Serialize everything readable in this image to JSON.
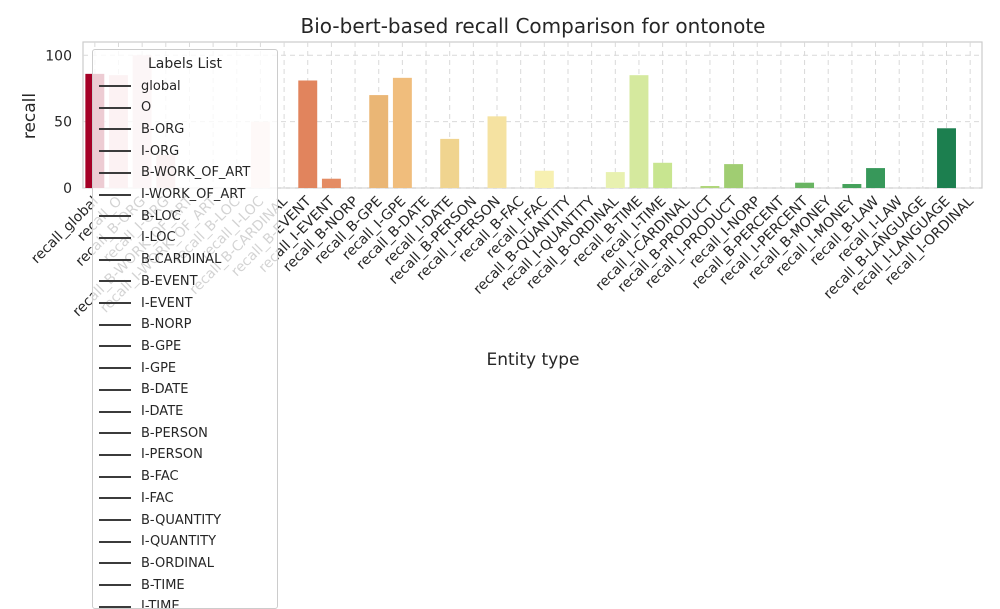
{
  "chart_data": {
    "type": "bar",
    "title": "Bio-bert-based recall Comparison for ontonote",
    "xlabel": "Entity type",
    "ylabel": "recall",
    "ylim": [
      0,
      110
    ],
    "yticks": [
      0,
      50,
      100
    ],
    "grid": true,
    "categories": [
      "recall_global",
      "recall_O",
      "recall_B-ORG",
      "recall_I-ORG",
      "recall_B-WORK_OF_ART",
      "recall_I-WORK_OF_ART",
      "recall_B-LOC",
      "recall_I-LOC",
      "recall_B-CARDINAL",
      "recall_B-EVENT",
      "recall_I-EVENT",
      "recall_B-NORP",
      "recall_B-GPE",
      "recall_I-GPE",
      "recall_B-DATE",
      "recall_I-DATE",
      "recall_B-PERSON",
      "recall_I-PERSON",
      "recall_B-FAC",
      "recall_I-FAC",
      "recall_B-QUANTITY",
      "recall_I-QUANTITY",
      "recall_B-ORDINAL",
      "recall_B-TIME",
      "recall_I-TIME",
      "recall_I-CARDINAL",
      "recall_B-PRODUCT",
      "recall_I-PRODUCT",
      "recall_I-NORP",
      "recall_B-PERCENT",
      "recall_I-PERCENT",
      "recall_B-MONEY",
      "recall_I-MONEY",
      "recall_B-LAW",
      "recall_I-LAW",
      "recall_B-LANGUAGE",
      "recall_I-LANGUAGE",
      "recall_I-ORDINAL"
    ],
    "values": [
      86,
      85,
      100,
      25,
      0,
      0,
      0,
      50,
      0,
      81,
      7,
      0,
      70,
      83,
      0,
      37,
      0,
      54,
      0,
      13,
      0,
      0,
      12,
      85,
      19,
      0,
      1.5,
      18,
      0,
      0,
      4,
      0,
      3,
      15,
      0,
      0,
      45,
      0
    ],
    "colors": [
      "#a50026",
      "#edbfc1",
      "#f1d3d4",
      "#eac0c2",
      "#f4dcdc",
      "#f6e2e1",
      "#f7e4e2",
      "#f8e2dd",
      "#f4ccc0",
      "#e1845d",
      "#e48c64",
      "#e69d6a",
      "#eab675",
      "#f0bd7c",
      "#f2cd88",
      "#f0d48f",
      "#f4dc95",
      "#f5e2a1",
      "#f5e8a8",
      "#f7f0b1",
      "#f6f2b2",
      "#eef2b1",
      "#e8f1b0",
      "#d5e99e",
      "#c8e590",
      "#bddc83",
      "#b0d67b",
      "#a0cd72",
      "#8fc56b",
      "#7cbc66",
      "#69b462",
      "#56ac5f",
      "#45a25b",
      "#37985a",
      "#2a8d57",
      "#228354",
      "#1c7f4f",
      "#e6e6e6"
    ],
    "legend": {
      "title": "Labels List",
      "entries": [
        "global",
        "O",
        "B-ORG",
        "I-ORG",
        "B-WORK_OF_ART",
        "I-WORK_OF_ART",
        "B-LOC",
        "I-LOC",
        "B-CARDINAL",
        "B-EVENT",
        "I-EVENT",
        "B-NORP",
        "B-GPE",
        "I-GPE",
        "B-DATE",
        "I-DATE",
        "B-PERSON",
        "I-PERSON",
        "B-FAC",
        "I-FAC",
        "B-QUANTITY",
        "I-QUANTITY",
        "B-ORDINAL",
        "B-TIME",
        "I-TIME"
      ],
      "placement": "upper-left"
    }
  }
}
